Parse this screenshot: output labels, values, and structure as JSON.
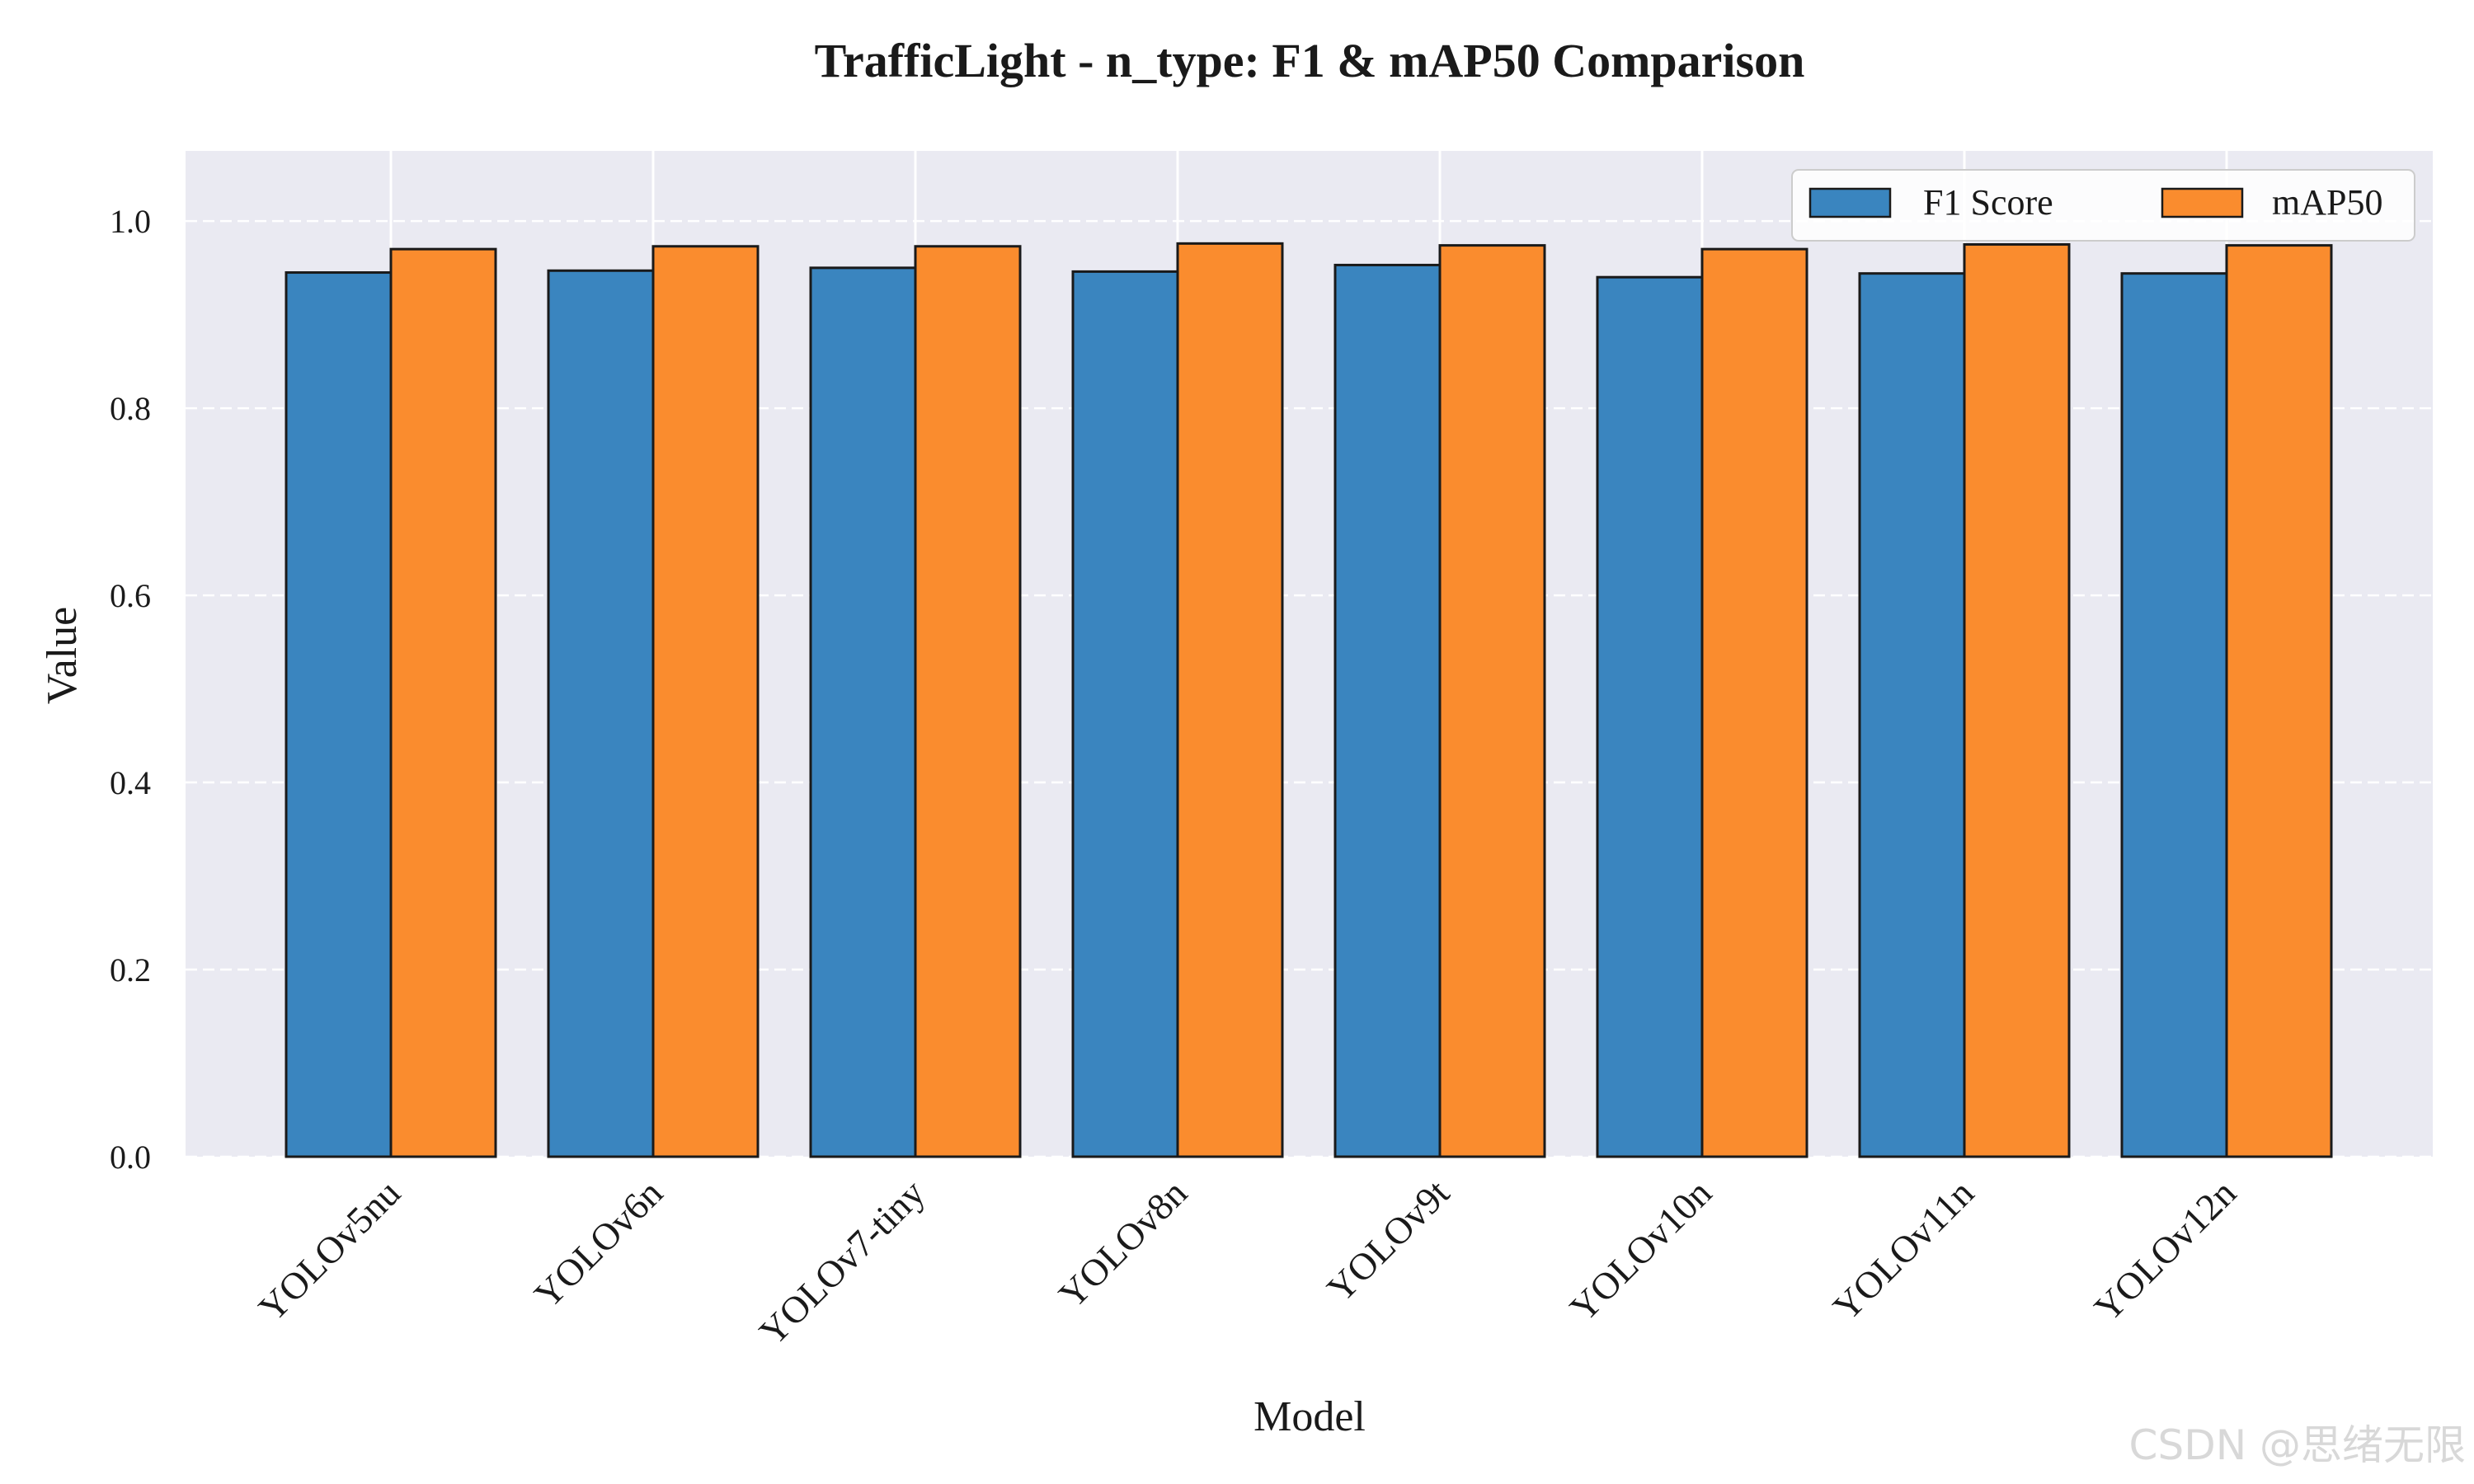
{
  "chart_data": {
    "type": "bar",
    "title": "TrafficLight - n_type: F1 & mAP50 Comparison",
    "xlabel": "Model",
    "ylabel": "Value",
    "ylim": [
      0,
      1.075
    ],
    "yticks": [
      "0.0",
      "0.2",
      "0.4",
      "0.6",
      "0.8",
      "1.0"
    ],
    "grid": true,
    "legend_position": "top-right",
    "categories": [
      "YOLOv5nu",
      "YOLOv6n",
      "YOLOv7-tiny",
      "YOLOv8n",
      "YOLOv9t",
      "YOLOv10n",
      "YOLOv11n",
      "YOLOv12n"
    ],
    "series": [
      {
        "name": "F1 Score",
        "color": "#3a85bf",
        "values": [
          0.945,
          0.947,
          0.95,
          0.946,
          0.953,
          0.94,
          0.944,
          0.944
        ]
      },
      {
        "name": "mAP50",
        "color": "#fa8c2e",
        "values": [
          0.97,
          0.973,
          0.973,
          0.976,
          0.974,
          0.97,
          0.975,
          0.974
        ]
      }
    ]
  },
  "colors": {
    "plot_background": "#eaeaf2",
    "grid": "#ffffff",
    "bar_edge": "#1a1a1a"
  },
  "watermark": "CSDN @思绪无限"
}
